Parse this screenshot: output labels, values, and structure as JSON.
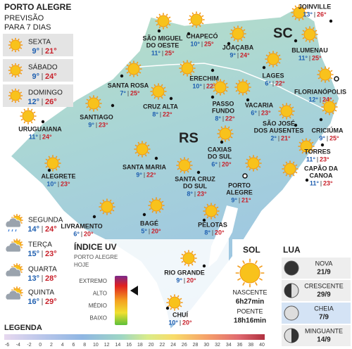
{
  "header": {
    "title": "PORTO ALEGRE",
    "subtitle": [
      "PREVISÃO",
      "PARA 7 DIAS"
    ]
  },
  "forecast": [
    {
      "day": "SEXTA",
      "min": "9°",
      "max": "21°"
    },
    {
      "day": "SÁBADO",
      "min": "9°",
      "max": "24°"
    },
    {
      "day": "DOMINGO",
      "min": "12°",
      "max": "26°"
    },
    {
      "day": "SEGUNDA",
      "min": "14°",
      "max": "24°"
    },
    {
      "day": "TERÇA",
      "min": "15°",
      "max": "23°"
    },
    {
      "day": "QUARTA",
      "min": "13°",
      "max": "28°"
    },
    {
      "day": "QUINTA",
      "min": "16°",
      "max": "29°"
    }
  ],
  "states": [
    "SC",
    "RS"
  ],
  "cities": [
    {
      "name": [
        "JOINVILLE"
      ],
      "min": "13°",
      "max": "26°"
    },
    {
      "name": [
        "CHAPECÓ"
      ],
      "min": "10°",
      "max": "25°"
    },
    {
      "name": [
        "SÃO MIGUEL",
        "DO OESTE"
      ],
      "min": "11°",
      "max": "25°"
    },
    {
      "name": [
        "JOAÇABA"
      ],
      "min": "9°",
      "max": "24°"
    },
    {
      "name": [
        "BLUMENAU"
      ],
      "min": "11°",
      "max": "25°"
    },
    {
      "name": [
        "LAGES"
      ],
      "min": "6°",
      "max": "22°"
    },
    {
      "name": [
        "FLORIANÓPOLIS"
      ],
      "min": "12°",
      "max": "24°"
    },
    {
      "name": [
        "SANTA ROSA"
      ],
      "min": "7°",
      "max": "25°"
    },
    {
      "name": [
        "ERECHIM"
      ],
      "min": "10°",
      "max": "22°"
    },
    {
      "name": [
        "PASSO",
        "FUNDO"
      ],
      "min": "8°",
      "max": "22°"
    },
    {
      "name": [
        "VACARIA"
      ],
      "min": "6°",
      "max": "23°"
    },
    {
      "name": [
        "CRICIÚMA"
      ],
      "min": "9°",
      "max": "25°"
    },
    {
      "name": [
        "SANTIAGO"
      ],
      "min": "9°",
      "max": "23°"
    },
    {
      "name": [
        "CRUZ ALTA"
      ],
      "min": "8°",
      "max": "22°"
    },
    {
      "name": [
        "SÃO JOSÉ",
        "DOS AUSENTES"
      ],
      "min": "2°",
      "max": "21°"
    },
    {
      "name": [
        "URUGUAIANA"
      ],
      "min": "11°",
      "max": "24°"
    },
    {
      "name": [
        "CAXIAS",
        "DO SUL"
      ],
      "min": "6°",
      "max": "20°"
    },
    {
      "name": [
        "TORRES"
      ],
      "min": "11°",
      "max": "23°"
    },
    {
      "name": [
        "ALEGRETE"
      ],
      "min": "10°",
      "max": "23°"
    },
    {
      "name": [
        "SANTA MARIA"
      ],
      "min": "9°",
      "max": "22°"
    },
    {
      "name": [
        "SANTA CRUZ",
        "DO SUL"
      ],
      "min": "8°",
      "max": "23°"
    },
    {
      "name": [
        "CAPÃO DA",
        "CANOA"
      ],
      "min": "11°",
      "max": "23°"
    },
    {
      "name": [
        "PORTO",
        "ALEGRE"
      ],
      "min": "9°",
      "max": "21°"
    },
    {
      "name": [
        "LIVRAMENTO"
      ],
      "min": "6°",
      "max": "20°"
    },
    {
      "name": [
        "BAGÉ"
      ],
      "min": "5°",
      "max": "20°"
    },
    {
      "name": [
        "PELOTAS"
      ],
      "min": "8°",
      "max": "20°"
    },
    {
      "name": [
        "RIO GRANDE"
      ],
      "min": "9°",
      "max": "20°"
    },
    {
      "name": [
        "CHUÍ"
      ],
      "min": "10°",
      "max": "20°"
    }
  ],
  "uv": {
    "title": "ÍNDICE UV",
    "subtitle": [
      "PORTO ALEGRE",
      "HOJE"
    ],
    "levels": [
      "EXTREMO",
      "ALTO",
      "MÉDIO",
      "BAIXO"
    ]
  },
  "sun": {
    "title": "SOL",
    "sunrise_label": "NASCENTE",
    "sunrise": "6h27min",
    "sunset_label": "POENTE",
    "sunset": "18h16min"
  },
  "moon": {
    "title": "LUA",
    "phases": [
      {
        "name": "NOVA",
        "date": "21/9"
      },
      {
        "name": "CRESCENTE",
        "date": "29/9"
      },
      {
        "name": "CHEIA",
        "date": "7/9"
      },
      {
        "name": "MINGUANTE",
        "date": "14/9"
      }
    ]
  },
  "legend": {
    "title": "LEGENDA",
    "ticks": [
      -6,
      -4,
      -2,
      0,
      2,
      4,
      6,
      8,
      10,
      12,
      14,
      16,
      18,
      20,
      22,
      24,
      26,
      28,
      30,
      32,
      34,
      36,
      38,
      40
    ]
  }
}
